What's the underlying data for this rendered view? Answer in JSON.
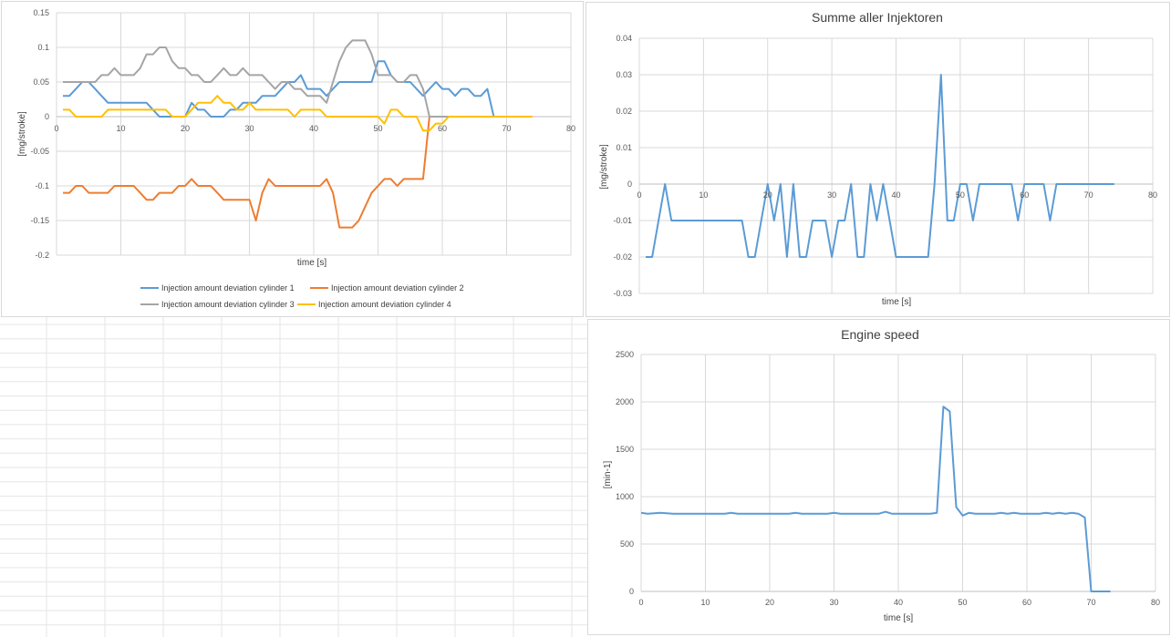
{
  "colors": {
    "cylinder1": "#5b9bd5",
    "cylinder2": "#ed7d31",
    "cylinder3": "#a5a5a5",
    "cylinder4": "#ffc000",
    "single": "#5b9bd5",
    "grid": "#d9d9d9",
    "sheet_grid": "#e6e6e6"
  },
  "chart_data": [
    {
      "id": "deviation",
      "type": "line",
      "title": "",
      "xlabel": "time [s]",
      "ylabel": "[mg/stroke]",
      "xlim": [
        0,
        80
      ],
      "ylim": [
        -0.2,
        0.15
      ],
      "xticks": [
        0,
        10,
        20,
        30,
        40,
        50,
        60,
        70,
        80
      ],
      "yticks": [
        0.15,
        0.1,
        0.05,
        0,
        -0.05,
        -0.1,
        -0.15,
        -0.2
      ],
      "ytick_labels": [
        "0.15",
        "0.1",
        "0.05",
        "0",
        "-0.05",
        "-0.1",
        "-0.15",
        "-0.2"
      ],
      "xtick_labels": [
        "0",
        "10",
        "20",
        "30",
        "40",
        "50",
        "60",
        "70",
        "80"
      ],
      "legend_position": "bottom",
      "series": [
        {
          "name": "Injection amount deviation cylinder 1",
          "color_key": "cylinder1",
          "x": [
            1,
            2,
            3,
            4,
            5,
            6,
            7,
            8,
            9,
            10,
            11,
            12,
            13,
            14,
            15,
            16,
            17,
            18,
            19,
            20,
            21,
            22,
            23,
            24,
            25,
            26,
            27,
            28,
            29,
            30,
            31,
            32,
            33,
            34,
            35,
            36,
            37,
            38,
            39,
            40,
            41,
            42,
            43,
            44,
            45,
            46,
            47,
            48,
            49,
            50,
            51,
            52,
            53,
            54,
            55,
            56,
            57,
            58,
            59,
            60,
            61,
            62,
            63,
            64,
            65,
            66,
            67,
            68,
            69,
            70,
            71
          ],
          "y": [
            0.03,
            0.03,
            0.04,
            0.05,
            0.05,
            0.04,
            0.03,
            0.02,
            0.02,
            0.02,
            0.02,
            0.02,
            0.02,
            0.02,
            0.01,
            0.0,
            0.0,
            0.0,
            0.0,
            0.0,
            0.02,
            0.01,
            0.01,
            0.0,
            0.0,
            0.0,
            0.01,
            0.01,
            0.02,
            0.02,
            0.02,
            0.03,
            0.03,
            0.03,
            0.04,
            0.05,
            0.05,
            0.06,
            0.04,
            0.04,
            0.04,
            0.03,
            0.04,
            0.05,
            0.05,
            0.05,
            0.05,
            0.05,
            0.05,
            0.08,
            0.08,
            0.06,
            0.05,
            0.05,
            0.05,
            0.04,
            0.03,
            0.04,
            0.05,
            0.04,
            0.04,
            0.03,
            0.04,
            0.04,
            0.03,
            0.03,
            0.04,
            0.0,
            0.0,
            0.0,
            0.0
          ]
        },
        {
          "name": "Injection amount deviation cylinder 2",
          "color_key": "cylinder2",
          "x": [
            1,
            2,
            3,
            4,
            5,
            6,
            7,
            8,
            9,
            10,
            11,
            12,
            13,
            14,
            15,
            16,
            17,
            18,
            19,
            20,
            21,
            22,
            23,
            24,
            25,
            26,
            27,
            28,
            29,
            30,
            31,
            32,
            33,
            34,
            35,
            36,
            37,
            38,
            39,
            40,
            41,
            42,
            43,
            44,
            45,
            46,
            47,
            48,
            49,
            50,
            51,
            52,
            53,
            54,
            55,
            56,
            57,
            58,
            59,
            60,
            61,
            62,
            63,
            64,
            65,
            66,
            67,
            68,
            69,
            70,
            71
          ],
          "y": [
            -0.11,
            -0.11,
            -0.1,
            -0.1,
            -0.11,
            -0.11,
            -0.11,
            -0.11,
            -0.1,
            -0.1,
            -0.1,
            -0.1,
            -0.11,
            -0.12,
            -0.12,
            -0.11,
            -0.11,
            -0.11,
            -0.1,
            -0.1,
            -0.09,
            -0.1,
            -0.1,
            -0.1,
            -0.11,
            -0.12,
            -0.12,
            -0.12,
            -0.12,
            -0.12,
            -0.15,
            -0.11,
            -0.09,
            -0.1,
            -0.1,
            -0.1,
            -0.1,
            -0.1,
            -0.1,
            -0.1,
            -0.1,
            -0.09,
            -0.11,
            -0.16,
            -0.16,
            -0.16,
            -0.15,
            -0.13,
            -0.11,
            -0.1,
            -0.09,
            -0.09,
            -0.1,
            -0.09,
            -0.09,
            -0.09,
            -0.09,
            0.0,
            0.0,
            0.0,
            0.0,
            0.0,
            0.0,
            0.0,
            0.0,
            0.0,
            0.0,
            0.0,
            0.0,
            0.0,
            0.0
          ]
        },
        {
          "name": "Injection amount deviation cylinder 3",
          "color_key": "cylinder3",
          "x": [
            1,
            2,
            3,
            4,
            5,
            6,
            7,
            8,
            9,
            10,
            11,
            12,
            13,
            14,
            15,
            16,
            17,
            18,
            19,
            20,
            21,
            22,
            23,
            24,
            25,
            26,
            27,
            28,
            29,
            30,
            31,
            32,
            33,
            34,
            35,
            36,
            37,
            38,
            39,
            40,
            41,
            42,
            43,
            44,
            45,
            46,
            47,
            48,
            49,
            50,
            51,
            52,
            53,
            54,
            55,
            56,
            57,
            58,
            59,
            60,
            61,
            62,
            63,
            64,
            65,
            66,
            67,
            68,
            69,
            70,
            71
          ],
          "y": [
            0.05,
            0.05,
            0.05,
            0.05,
            0.05,
            0.05,
            0.06,
            0.06,
            0.07,
            0.06,
            0.06,
            0.06,
            0.07,
            0.09,
            0.09,
            0.1,
            0.1,
            0.08,
            0.07,
            0.07,
            0.06,
            0.06,
            0.05,
            0.05,
            0.06,
            0.07,
            0.06,
            0.06,
            0.07,
            0.06,
            0.06,
            0.06,
            0.05,
            0.04,
            0.05,
            0.05,
            0.04,
            0.04,
            0.03,
            0.03,
            0.03,
            0.02,
            0.05,
            0.08,
            0.1,
            0.11,
            0.11,
            0.11,
            0.09,
            0.06,
            0.06,
            0.06,
            0.05,
            0.05,
            0.06,
            0.06,
            0.04,
            0.0,
            0.0,
            0.0,
            0.0,
            0.0,
            0.0,
            0.0,
            0.0,
            0.0,
            0.0,
            0.0,
            0.0,
            0.0,
            0.0
          ]
        },
        {
          "name": "Injection amount deviation cylinder 4",
          "color_key": "cylinder4",
          "x": [
            1,
            2,
            3,
            4,
            5,
            6,
            7,
            8,
            9,
            10,
            11,
            12,
            13,
            14,
            15,
            16,
            17,
            18,
            19,
            20,
            21,
            22,
            23,
            24,
            25,
            26,
            27,
            28,
            29,
            30,
            31,
            32,
            33,
            34,
            35,
            36,
            37,
            38,
            39,
            40,
            41,
            42,
            43,
            44,
            45,
            46,
            47,
            48,
            49,
            50,
            51,
            52,
            53,
            54,
            55,
            56,
            57,
            58,
            59,
            60,
            61,
            62,
            63,
            64,
            65,
            66,
            67,
            68,
            69,
            70,
            71,
            72,
            73,
            74
          ],
          "y": [
            0.01,
            0.01,
            0.0,
            0.0,
            0.0,
            0.0,
            0.0,
            0.01,
            0.01,
            0.01,
            0.01,
            0.01,
            0.01,
            0.01,
            0.01,
            0.01,
            0.01,
            0.0,
            0.0,
            0.0,
            0.01,
            0.02,
            0.02,
            0.02,
            0.03,
            0.02,
            0.02,
            0.01,
            0.01,
            0.02,
            0.01,
            0.01,
            0.01,
            0.01,
            0.01,
            0.01,
            0.0,
            0.01,
            0.01,
            0.01,
            0.01,
            0.0,
            0.0,
            0.0,
            0.0,
            0.0,
            0.0,
            0.0,
            0.0,
            0.0,
            -0.01,
            0.01,
            0.01,
            0.0,
            0.0,
            0.0,
            -0.02,
            -0.02,
            -0.01,
            -0.01,
            0.0,
            0.0,
            0.0,
            0.0,
            0.0,
            0.0,
            0.0,
            0.0,
            0.0,
            0.0,
            0.0,
            0.0,
            0.0,
            0.0
          ]
        }
      ]
    },
    {
      "id": "summe",
      "type": "line",
      "title": "Summe aller Injektoren",
      "xlabel": "time [s]",
      "ylabel": "[mg/stroke]",
      "xlim": [
        0,
        80
      ],
      "ylim": [
        -0.03,
        0.04
      ],
      "xticks": [
        0,
        10,
        20,
        30,
        40,
        50,
        60,
        70,
        80
      ],
      "yticks": [
        0.04,
        0.03,
        0.02,
        0.01,
        0,
        -0.01,
        -0.02,
        -0.03
      ],
      "ytick_labels": [
        "0.04",
        "0.03",
        "0.02",
        "0.01",
        "0",
        "-0.01",
        "-0.02",
        "-0.03"
      ],
      "xtick_labels": [
        "0",
        "10",
        "20",
        "30",
        "40",
        "50",
        "60",
        "70",
        "80"
      ],
      "series": [
        {
          "name": "Summe aller Injektoren",
          "color_key": "single",
          "x": [
            1,
            2,
            3,
            4,
            5,
            6,
            7,
            8,
            9,
            10,
            11,
            12,
            13,
            14,
            15,
            16,
            17,
            18,
            19,
            20,
            21,
            22,
            23,
            24,
            25,
            26,
            27,
            28,
            29,
            30,
            31,
            32,
            33,
            34,
            35,
            36,
            37,
            38,
            39,
            40,
            41,
            42,
            43,
            44,
            45,
            46,
            47,
            48,
            49,
            50,
            51,
            52,
            53,
            54,
            55,
            56,
            57,
            58,
            59,
            60,
            61,
            62,
            63,
            64,
            65,
            66,
            67,
            68,
            69,
            70,
            71,
            72,
            73,
            74
          ],
          "y": [
            -0.02,
            -0.02,
            -0.01,
            0.0,
            -0.01,
            -0.01,
            -0.01,
            -0.01,
            -0.01,
            -0.01,
            -0.01,
            -0.01,
            -0.01,
            -0.01,
            -0.01,
            -0.01,
            -0.02,
            -0.02,
            -0.01,
            0.0,
            -0.01,
            0.0,
            -0.02,
            0.0,
            -0.02,
            -0.02,
            -0.01,
            -0.01,
            -0.01,
            -0.02,
            -0.01,
            -0.01,
            0.0,
            -0.02,
            -0.02,
            0.0,
            -0.01,
            0.0,
            -0.01,
            -0.02,
            -0.02,
            -0.02,
            -0.02,
            -0.02,
            -0.02,
            0.0,
            0.03,
            -0.01,
            -0.01,
            0.0,
            0.0,
            -0.01,
            0.0,
            0.0,
            0.0,
            0.0,
            0.0,
            0.0,
            -0.01,
            0.0,
            0.0,
            0.0,
            0.0,
            -0.01,
            0.0,
            0.0,
            0.0,
            0.0,
            0.0,
            0.0,
            0.0,
            0.0,
            0.0,
            0.0
          ]
        }
      ]
    },
    {
      "id": "speed",
      "type": "line",
      "title": "Engine speed",
      "xlabel": "time [s]",
      "ylabel": "[min-1]",
      "xlim": [
        0,
        80
      ],
      "ylim": [
        0,
        2500
      ],
      "xticks": [
        0,
        10,
        20,
        30,
        40,
        50,
        60,
        70,
        80
      ],
      "yticks": [
        2500,
        2000,
        1500,
        1000,
        500,
        0
      ],
      "ytick_labels": [
        "2500",
        "2000",
        "1500",
        "1000",
        "500",
        "0"
      ],
      "xtick_labels": [
        "0",
        "10",
        "20",
        "30",
        "40",
        "50",
        "60",
        "70",
        "80"
      ],
      "series": [
        {
          "name": "Engine speed",
          "color_key": "single",
          "x": [
            0,
            1,
            2,
            3,
            4,
            5,
            6,
            7,
            8,
            9,
            10,
            11,
            12,
            13,
            14,
            15,
            16,
            17,
            18,
            19,
            20,
            21,
            22,
            23,
            24,
            25,
            26,
            27,
            28,
            29,
            30,
            31,
            32,
            33,
            34,
            35,
            36,
            37,
            38,
            39,
            40,
            41,
            42,
            43,
            44,
            45,
            46,
            47,
            48,
            49,
            50,
            51,
            52,
            53,
            54,
            55,
            56,
            57,
            58,
            59,
            60,
            61,
            62,
            63,
            64,
            65,
            66,
            67,
            68,
            69,
            70,
            71,
            72,
            73
          ],
          "y": [
            830,
            820,
            825,
            830,
            825,
            820,
            820,
            820,
            820,
            820,
            820,
            820,
            820,
            820,
            830,
            820,
            820,
            820,
            820,
            820,
            820,
            820,
            820,
            820,
            830,
            820,
            820,
            820,
            820,
            820,
            830,
            820,
            820,
            820,
            820,
            820,
            820,
            820,
            840,
            820,
            820,
            820,
            820,
            820,
            820,
            820,
            830,
            1950,
            1900,
            890,
            800,
            830,
            820,
            820,
            820,
            820,
            830,
            820,
            830,
            820,
            820,
            820,
            820,
            830,
            820,
            830,
            820,
            830,
            820,
            780,
            0,
            0,
            0,
            0
          ]
        }
      ]
    }
  ]
}
